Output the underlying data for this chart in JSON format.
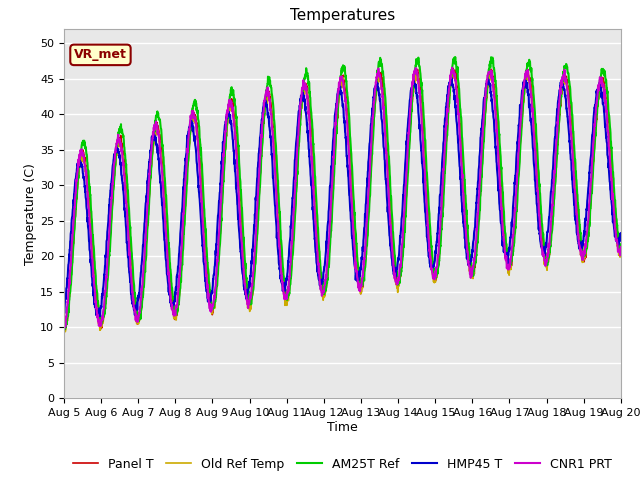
{
  "title": "Temperatures",
  "xlabel": "Time",
  "ylabel": "Temperature (C)",
  "ylim": [
    0,
    52
  ],
  "x_tick_labels": [
    "Aug 5",
    "Aug 6",
    "Aug 7",
    "Aug 8",
    "Aug 9",
    "Aug 10",
    "Aug 11",
    "Aug 12",
    "Aug 13",
    "Aug 14",
    "Aug 15",
    "Aug 16",
    "Aug 17",
    "Aug 18",
    "Aug 19",
    "Aug 20"
  ],
  "annotation": "VR_met",
  "legend_labels": [
    "Panel T",
    "Old Ref Temp",
    "AM25T Ref",
    "HMP45 T",
    "CNR1 PRT"
  ],
  "line_colors": [
    "#cc0000",
    "#ccaa00",
    "#00cc00",
    "#0000cc",
    "#cc00cc"
  ],
  "line_widths": [
    1.2,
    1.2,
    1.5,
    1.5,
    1.5
  ],
  "bg_color": "#e8e8e8",
  "fig_bg_color": "#ffffff",
  "title_fontsize": 11,
  "axis_label_fontsize": 9,
  "tick_fontsize": 8,
  "legend_fontsize": 9,
  "grid_color": "#ffffff",
  "num_days": 15,
  "points_per_day": 144
}
